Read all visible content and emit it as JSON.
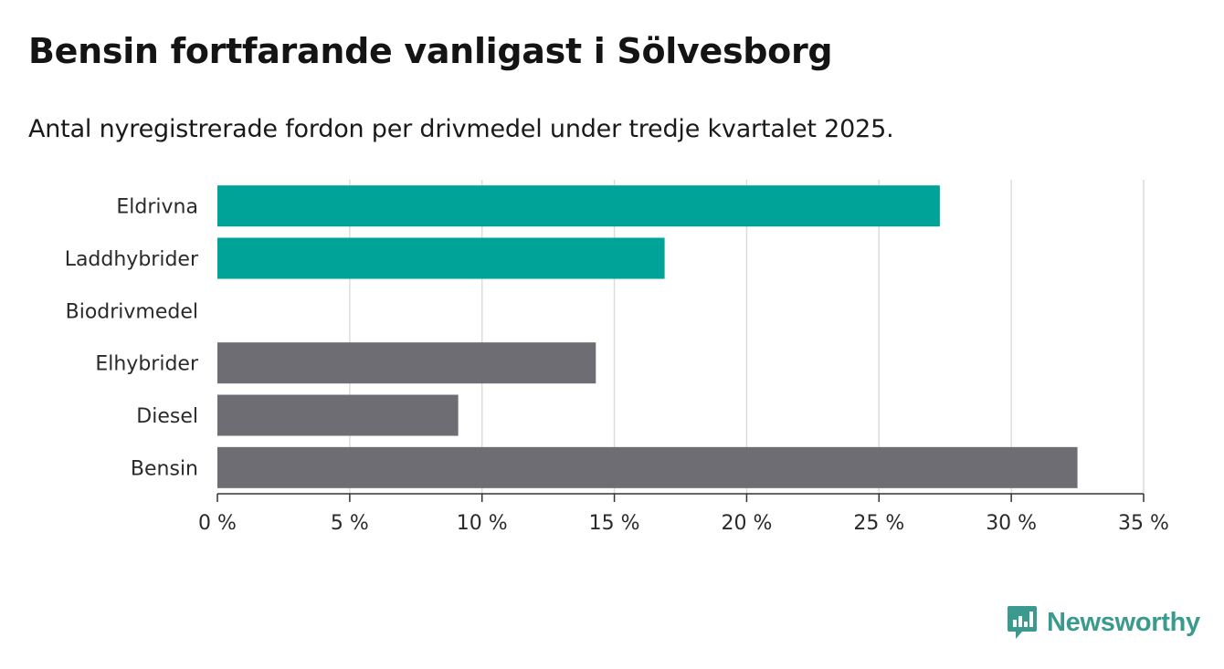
{
  "title": "Bensin fortfarande vanligast i Sölvesborg",
  "subtitle": "Antal nyregistrerade fordon per drivmedel under tredje kvartalet 2025.",
  "brand": {
    "name": "Newsworthy",
    "color": "#3a9a8e",
    "icon": "bar-chart-speech-bubble-icon"
  },
  "colors": {
    "electric": "#00a398",
    "fossil": "#6e6d73",
    "grid": "#dcdcdc",
    "axis": "#333333"
  },
  "chart_data": {
    "type": "bar",
    "orientation": "horizontal",
    "title": "Bensin fortfarande vanligast i Sölvesborg",
    "subtitle": "Antal nyregistrerade fordon per drivmedel under tredje kvartalet 2025.",
    "xlabel": "",
    "ylabel": "",
    "unit": "%",
    "xlim": [
      0,
      35
    ],
    "ticks": [
      0,
      5,
      10,
      15,
      20,
      25,
      30,
      35
    ],
    "tick_labels": [
      "0 %",
      "5 %",
      "10 %",
      "15 %",
      "20 %",
      "25 %",
      "30 %",
      "35 %"
    ],
    "grid": true,
    "categories": [
      "Eldrivna",
      "Laddhybrider",
      "Biodrivmedel",
      "Elhybrider",
      "Diesel",
      "Bensin"
    ],
    "values": [
      27.3,
      16.9,
      0,
      14.3,
      9.1,
      32.5
    ],
    "groups": [
      "electric",
      "electric",
      "electric",
      "fossil",
      "fossil",
      "fossil"
    ]
  }
}
